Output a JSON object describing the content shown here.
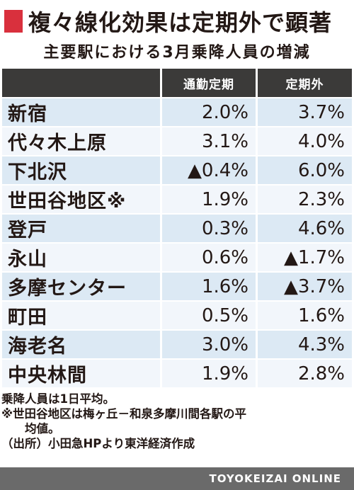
{
  "title": "複々線化効果は定期外で顕著",
  "subtitle": "主要駅における3月乗降人員の増減",
  "accent_color": "#d9303d",
  "chart_data": {
    "type": "table",
    "title": "複々線化効果は定期外で顕著",
    "subtitle": "主要駅における3月乗降人員の増減",
    "columns": [
      "",
      "通勤定期",
      "定期外"
    ],
    "rows": [
      {
        "station": "新宿",
        "commuter": "2.0%",
        "non_commuter": "3.7%"
      },
      {
        "station": "代々木上原",
        "commuter": "3.1%",
        "non_commuter": "4.0%"
      },
      {
        "station": "下北沢",
        "commuter": "▲0.4%",
        "non_commuter": "6.0%"
      },
      {
        "station": "世田谷地区※",
        "commuter": "1.9%",
        "non_commuter": "2.3%"
      },
      {
        "station": "登戸",
        "commuter": "0.3%",
        "non_commuter": "4.6%"
      },
      {
        "station": "永山",
        "commuter": "0.6%",
        "non_commuter": "▲1.7%"
      },
      {
        "station": "多摩センター",
        "commuter": "1.6%",
        "non_commuter": "▲3.7%"
      },
      {
        "station": "町田",
        "commuter": "0.5%",
        "non_commuter": "1.6%"
      },
      {
        "station": "海老名",
        "commuter": "3.0%",
        "non_commuter": "4.3%"
      },
      {
        "station": "中央林間",
        "commuter": "1.9%",
        "non_commuter": "2.8%"
      }
    ]
  },
  "notes": {
    "line1": "乗降人員は1日平均。",
    "line2": "※世田谷地区は梅ヶ丘－和泉多摩川間各駅の平",
    "line3": "均値。",
    "line4": "（出所）小田急HPより東洋経済作成"
  },
  "footer": {
    "brand": "TOYOKEIZAI ONLINE"
  }
}
